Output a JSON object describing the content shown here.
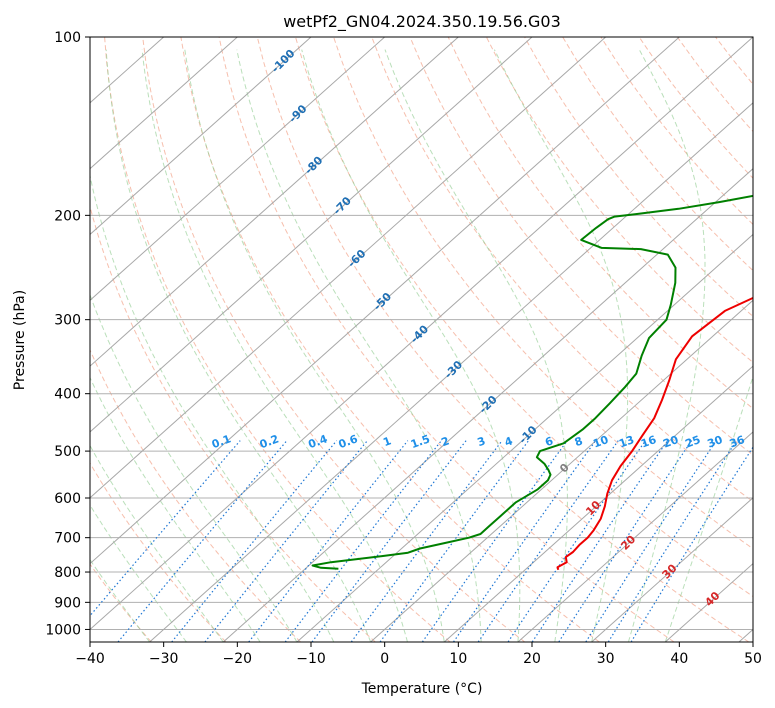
{
  "chart_data": {
    "type": "line",
    "title": "wetPf2_GN04.2024.350.19.56.G03",
    "xlabel": "Temperature (°C)",
    "ylabel": "Pressure (hPa)",
    "xlim": [
      -40,
      50
    ],
    "ylim": [
      1050,
      100
    ],
    "y_scale": "log",
    "x_ticks": [
      -40,
      -30,
      -20,
      -10,
      0,
      10,
      20,
      30,
      40,
      50
    ],
    "y_ticks": [
      1000,
      900,
      800,
      700,
      600,
      500,
      400,
      300,
      200,
      100
    ],
    "grid": true,
    "skew_reference": {
      "x_points": [
        -40,
        50
      ],
      "pressure_points": [
        1000,
        100
      ],
      "note": "Skew-T chart; isotherm labels printed at printed temperatures"
    },
    "isotherm_labels": [
      "-100",
      "-90",
      "-80",
      "-70",
      "-60",
      "-50",
      "-40",
      "-30",
      "-20",
      "-10",
      "0",
      "10",
      "20",
      "30",
      "40"
    ],
    "isotherm_label_values": [
      -100,
      -90,
      -80,
      -70,
      -60,
      -50,
      -40,
      -30,
      -20,
      -10,
      0,
      10,
      20,
      30,
      40
    ],
    "isotherm_label_pressures": [
      110,
      135,
      165,
      193,
      237,
      280,
      318,
      365,
      418,
      470,
      535,
      625,
      715,
      800,
      890
    ],
    "mixing_ratio_labels": [
      "0.1",
      "0.2",
      "0.4",
      "0.6",
      "1",
      "1.5",
      "2",
      "3",
      "4",
      "6",
      "8",
      "10",
      "13",
      "16",
      "20",
      "25",
      "30",
      "36"
    ],
    "mixing_ratio_label_temps": [
      -22,
      -15.5,
      -8.9,
      -4.8,
      0.5,
      5,
      8.4,
      13.3,
      17,
      22.5,
      26.5,
      29.5,
      33,
      36,
      39,
      42,
      45,
      48
    ],
    "series": [
      {
        "name": "",
        "color": "#ee0000",
        "pressure": [
          793,
          785,
          770,
          755,
          740,
          720,
          700,
          680,
          650,
          620,
          590,
          560,
          530,
          500,
          470,
          440,
          410,
          380,
          350,
          320,
          290,
          270,
          250,
          230,
          215,
          200,
          185,
          170,
          155,
          140,
          125,
          112,
          100
        ],
        "temperature": [
          14.5,
          14,
          14.5,
          13.6,
          13.8,
          13.6,
          13.6,
          13.3,
          12.5,
          11.2,
          9.6,
          8.2,
          7.2,
          6.5,
          5.5,
          4.5,
          2.8,
          0.8,
          -1.5,
          -2.8,
          -2.2,
          0.4,
          3.8,
          7.3,
          9.8,
          10.6,
          11,
          12.4,
          13,
          14,
          15.2,
          16.6,
          16.6
        ]
      },
      {
        "name": "",
        "color": "#008000",
        "pressure": [
          790,
          787,
          780,
          770,
          752,
          742,
          730,
          715,
          700,
          690,
          670,
          645,
          610,
          580,
          560,
          548,
          538,
          525,
          512,
          500,
          485,
          460,
          440,
          415,
          390,
          370,
          345,
          322,
          300,
          283,
          260,
          245,
          233,
          228,
          227,
          220,
          210,
          203,
          201,
          199,
          195,
          190,
          185,
          178,
          170,
          160,
          150,
          140,
          131,
          124,
          116,
          108,
          102,
          100
        ],
        "temperature": [
          -15.5,
          -18,
          -19.5,
          -17.5,
          -11.5,
          -8.5,
          -7.5,
          -5,
          -2.5,
          -1.5,
          -1.5,
          -1.5,
          -1.5,
          -0.5,
          -0.5,
          -1,
          -2,
          -3.5,
          -5.5,
          -6,
          -4,
          -3.5,
          -3.5,
          -3.8,
          -4.2,
          -4.7,
          -6.7,
          -8.4,
          -8.8,
          -10.5,
          -13.2,
          -15.5,
          -18.5,
          -23,
          -28.5,
          -32.5,
          -32.3,
          -32,
          -31.5,
          -29,
          -24,
          -19.5,
          -15.5,
          -13.5,
          -12,
          -11,
          -10,
          -9.5,
          -8.5,
          -6.5,
          -4.5,
          -2,
          -1.3,
          -1
        ]
      }
    ]
  }
}
